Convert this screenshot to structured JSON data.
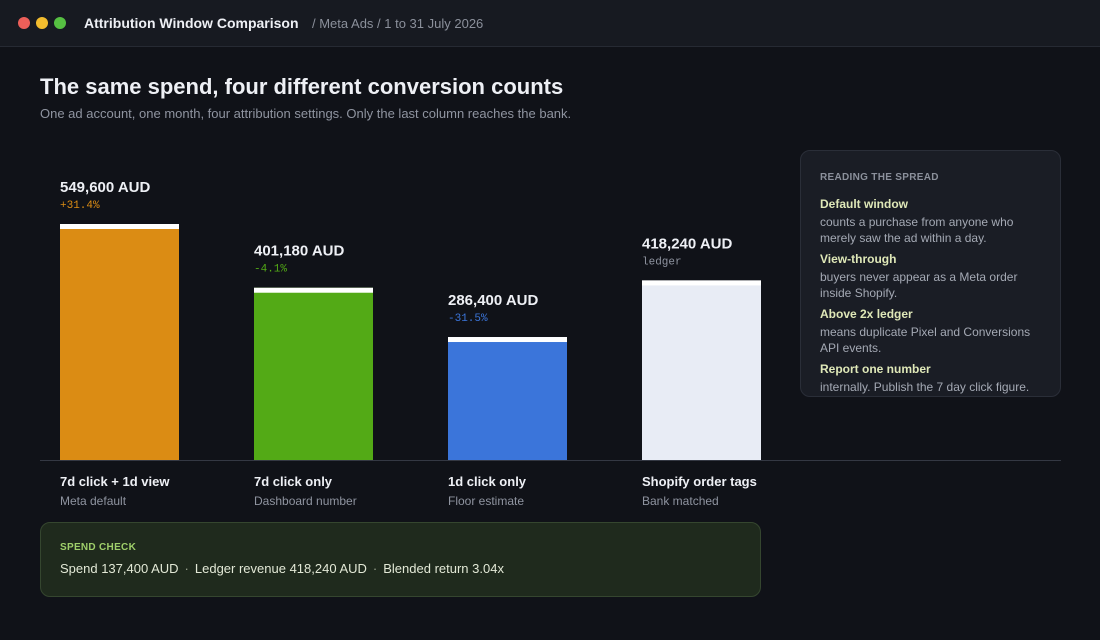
{
  "window": {
    "title": "Attribution Window Comparison",
    "breadcrumb": "/ Meta Ads / 1 to 31 July 2026",
    "controls": [
      {
        "name": "close",
        "color": "#ec5f59"
      },
      {
        "name": "minimize",
        "color": "#f2bc2e"
      },
      {
        "name": "maximize",
        "color": "#56c042"
      }
    ]
  },
  "header": {
    "title": "The same spend, four different conversion counts",
    "subtitle": "One ad account, one month, four attribution settings. Only the last column reaches the bank."
  },
  "chart_data": {
    "type": "bar",
    "unit": "AUD",
    "categories": [
      "7d click + 1d view",
      "7d click only",
      "1d click only",
      "Shopify order tags"
    ],
    "subtitles": [
      "Meta default",
      "Dashboard number",
      "Floor estimate",
      "Bank matched"
    ],
    "values": [
      549600,
      401180,
      286400,
      418240
    ],
    "value_labels": [
      "549,600 AUD",
      "401,180 AUD",
      "286,400 AUD",
      "418,240 AUD"
    ],
    "deltas": [
      "+31.4%",
      "-4.1%",
      "-31.5%",
      "ledger"
    ],
    "colors": [
      "#db8c14",
      "#53aa16",
      "#3b75da",
      "#e8ecf5"
    ],
    "delta_colors": [
      "#db8c14",
      "#53aa16",
      "#3b75da",
      "#8f94a0"
    ],
    "cap_color": "#ffffff",
    "ylim": [
      0,
      549600
    ],
    "grid": false,
    "legend": "none"
  },
  "panel": {
    "title": "READING THE SPREAD",
    "notes": [
      {
        "head": "Default window",
        "text": "counts a purchase from anyone who merely saw the ad within a day."
      },
      {
        "head": "View-through",
        "text": "buyers never appear as a Meta order inside Shopify."
      },
      {
        "head": "Above 2x ledger",
        "text": "means duplicate Pixel and Conversions API events."
      },
      {
        "head": "Report one number",
        "text": "internally. Publish the 7 day click figure."
      }
    ]
  },
  "spend_check": {
    "title": "SPEND CHECK",
    "spend": "Spend 137,400 AUD",
    "ledger": "Ledger revenue 418,240 AUD",
    "blended": "Blended return 3.04x",
    "separator": "·"
  }
}
